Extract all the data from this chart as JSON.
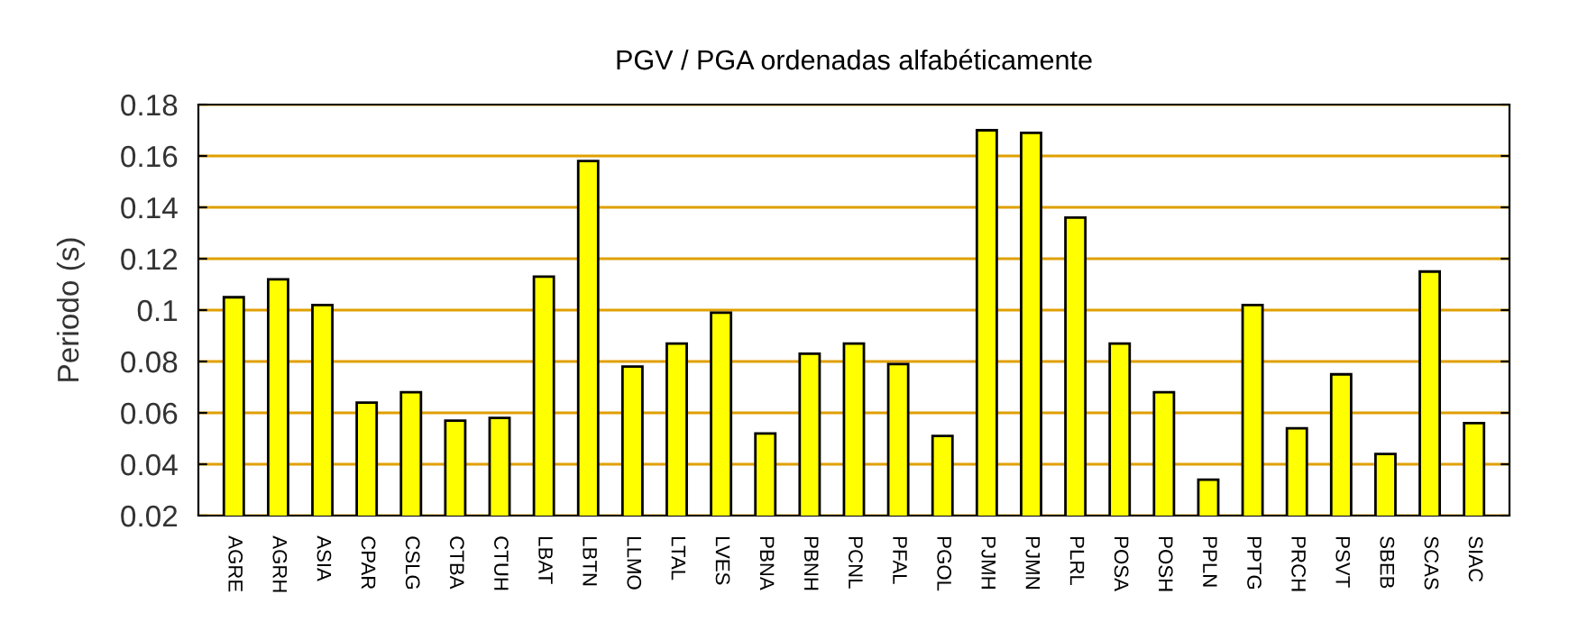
{
  "chart_data": {
    "type": "bar",
    "title": "PGV / PGA ordenadas alfabéticamente",
    "ylabel": "Periodo (s)",
    "categories": [
      "AGRE",
      "AGRH",
      "ASIA",
      "CPAR",
      "CSLG",
      "CTBA",
      "CTUH",
      "LBAT",
      "LBTN",
      "LLMO",
      "LTAL",
      "LVES",
      "PBNA",
      "PBNH",
      "PCNL",
      "PFAL",
      "PGOL",
      "PJMH",
      "PJMN",
      "PLRL",
      "POSA",
      "POSH",
      "PPLN",
      "PPTG",
      "PRCH",
      "PSVT",
      "SBEB",
      "SCAS",
      "SIAC"
    ],
    "values": [
      0.105,
      0.112,
      0.102,
      0.064,
      0.068,
      0.057,
      0.058,
      0.113,
      0.158,
      0.078,
      0.087,
      0.099,
      0.052,
      0.083,
      0.087,
      0.079,
      0.051,
      0.17,
      0.169,
      0.136,
      0.087,
      0.068,
      0.034,
      0.102,
      0.054,
      0.075,
      0.044,
      0.115,
      0.056
    ],
    "color": "#ffff00",
    "ylim": [
      0.02,
      0.18
    ],
    "yticks": [
      0.02,
      0.04,
      0.06,
      0.08,
      0.1,
      0.12,
      0.14,
      0.16,
      0.18
    ],
    "grid": "y"
  }
}
